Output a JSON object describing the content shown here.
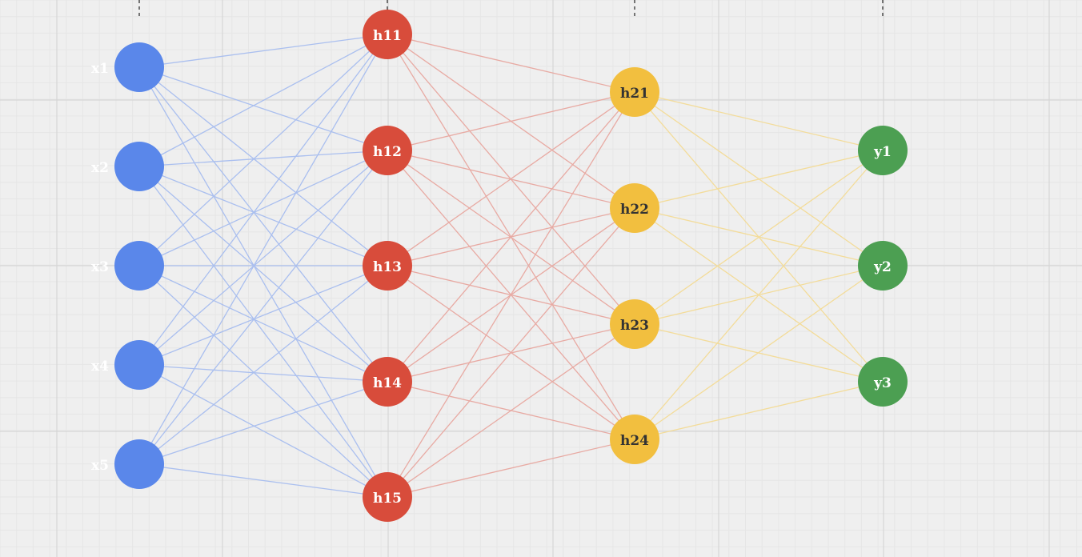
{
  "colors": {
    "background": "#efefef",
    "input": "#5a87ea",
    "hidden1": "#d84c3b",
    "hidden2": "#f2bf3f",
    "output": "#4c9f52",
    "edge_input": "#aabfef",
    "edge_hidden1": "#e8aaa3",
    "edge_hidden2": "#f3dc9a"
  },
  "layers": [
    {
      "name": "input",
      "color_key": "input",
      "label_color": "#ffffff",
      "label_position": "left",
      "nodes": [
        {
          "label": "x1"
        },
        {
          "label": "x2"
        },
        {
          "label": "x3"
        },
        {
          "label": "x4"
        },
        {
          "label": "x5"
        }
      ]
    },
    {
      "name": "hidden1",
      "color_key": "hidden1",
      "label_color": "#ffffff",
      "label_position": "center",
      "nodes": [
        {
          "label": "h11"
        },
        {
          "label": "h12"
        },
        {
          "label": "h13"
        },
        {
          "label": "h14"
        },
        {
          "label": "h15"
        }
      ]
    },
    {
      "name": "hidden2",
      "color_key": "hidden2",
      "label_color": "#333333",
      "label_position": "center",
      "nodes": [
        {
          "label": "h21"
        },
        {
          "label": "h22"
        },
        {
          "label": "h23"
        },
        {
          "label": "h24"
        }
      ]
    },
    {
      "name": "output",
      "color_key": "output",
      "label_color": "#ffffff",
      "label_position": "center",
      "nodes": [
        {
          "label": "y1"
        },
        {
          "label": "y2"
        },
        {
          "label": "y3"
        }
      ]
    }
  ],
  "connectivity": "fully-connected"
}
